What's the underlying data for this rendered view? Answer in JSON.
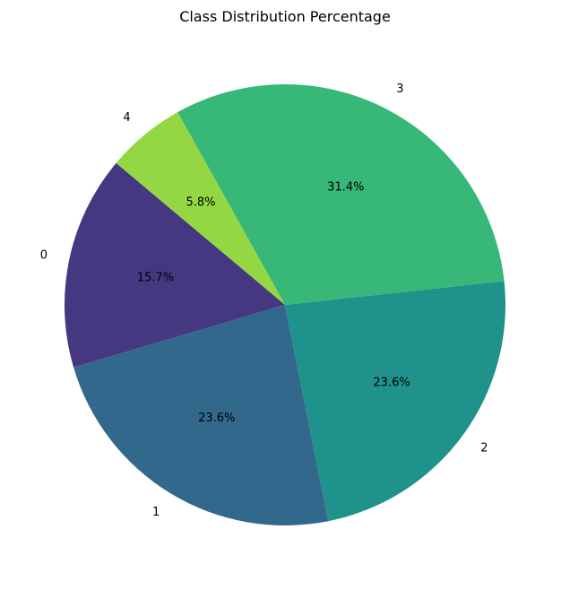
{
  "chart_data": {
    "type": "pie",
    "title": "Class Distribution Percentage",
    "categories": [
      "0",
      "1",
      "2",
      "3",
      "4"
    ],
    "values": [
      15.7,
      23.6,
      23.6,
      31.4,
      5.8
    ],
    "value_labels": [
      "15.7%",
      "23.6%",
      "23.6%",
      "31.4%",
      "5.8%"
    ],
    "colors": [
      "#463781",
      "#33688D",
      "#1F928B",
      "#37B778",
      "#93D742"
    ],
    "start_angle_deg": 140,
    "direction": "counterclockwise",
    "legend": "none"
  }
}
